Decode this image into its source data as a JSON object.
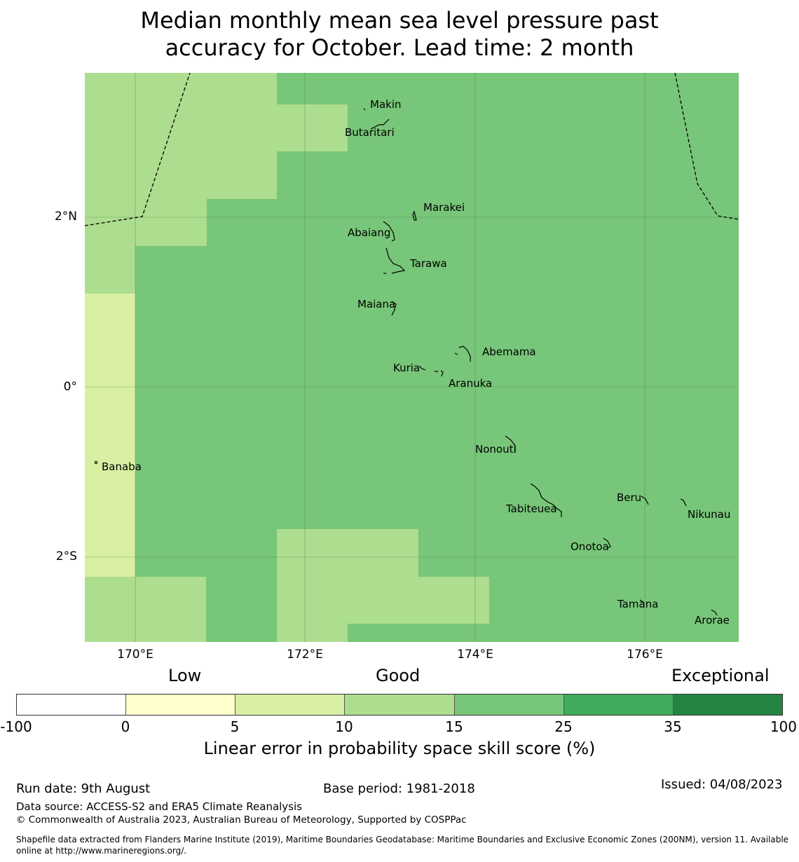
{
  "title_line1": "Median monthly mean sea level pressure past",
  "title_line2": "accuracy for October. Lead time: 2 month",
  "map": {
    "background_color": "#78c679",
    "lat_labels": [
      "2°N",
      "0°",
      "2°S"
    ],
    "lon_labels": [
      "170°E",
      "172°E",
      "174°E",
      "176°E"
    ],
    "islands": [
      {
        "name": "Makin"
      },
      {
        "name": "Butaritari"
      },
      {
        "name": "Marakei"
      },
      {
        "name": "Abaiang"
      },
      {
        "name": "Tarawa"
      },
      {
        "name": "Maiana"
      },
      {
        "name": "Abemama"
      },
      {
        "name": "Kuria"
      },
      {
        "name": "Aranuka"
      },
      {
        "name": "Nonouti"
      },
      {
        "name": "Banaba"
      },
      {
        "name": "Tabiteuea"
      },
      {
        "name": "Beru"
      },
      {
        "name": "Nikunau"
      },
      {
        "name": "Onotoa"
      },
      {
        "name": "Tamana"
      },
      {
        "name": "Arorae"
      }
    ]
  },
  "legend": {
    "categories": [
      "Low",
      "Good",
      "Exceptional"
    ],
    "ticks": [
      "-100",
      "0",
      "5",
      "10",
      "15",
      "25",
      "35",
      "100"
    ],
    "colors": [
      "#ffffff",
      "#ffffcc",
      "#d9f0a3",
      "#addd8e",
      "#78c679",
      "#41ab5d",
      "#238443"
    ],
    "label": "Linear error in probability space skill score (%)"
  },
  "footer": {
    "run_date": "Run date: 9th August",
    "base_period": "Base period: 1981-2018",
    "issued": "Issued: 04/08/2023",
    "data_source": "Data source: ACCESS-S2 and ERA5 Climate Reanalysis",
    "copyright": "© Commonwealth of Australia 2023, Australian Bureau of Meteorology, Supported by COSPPac",
    "shapefile_line1": "Shapefile data extracted from Flanders Marine Institute (2019), Maritime Boundaries Geodatabase: Maritime Boundaries and Exclusive Economic Zones (200NM), version 11. Available",
    "shapefile_line2": "online at http://www.marineregions.org/."
  }
}
